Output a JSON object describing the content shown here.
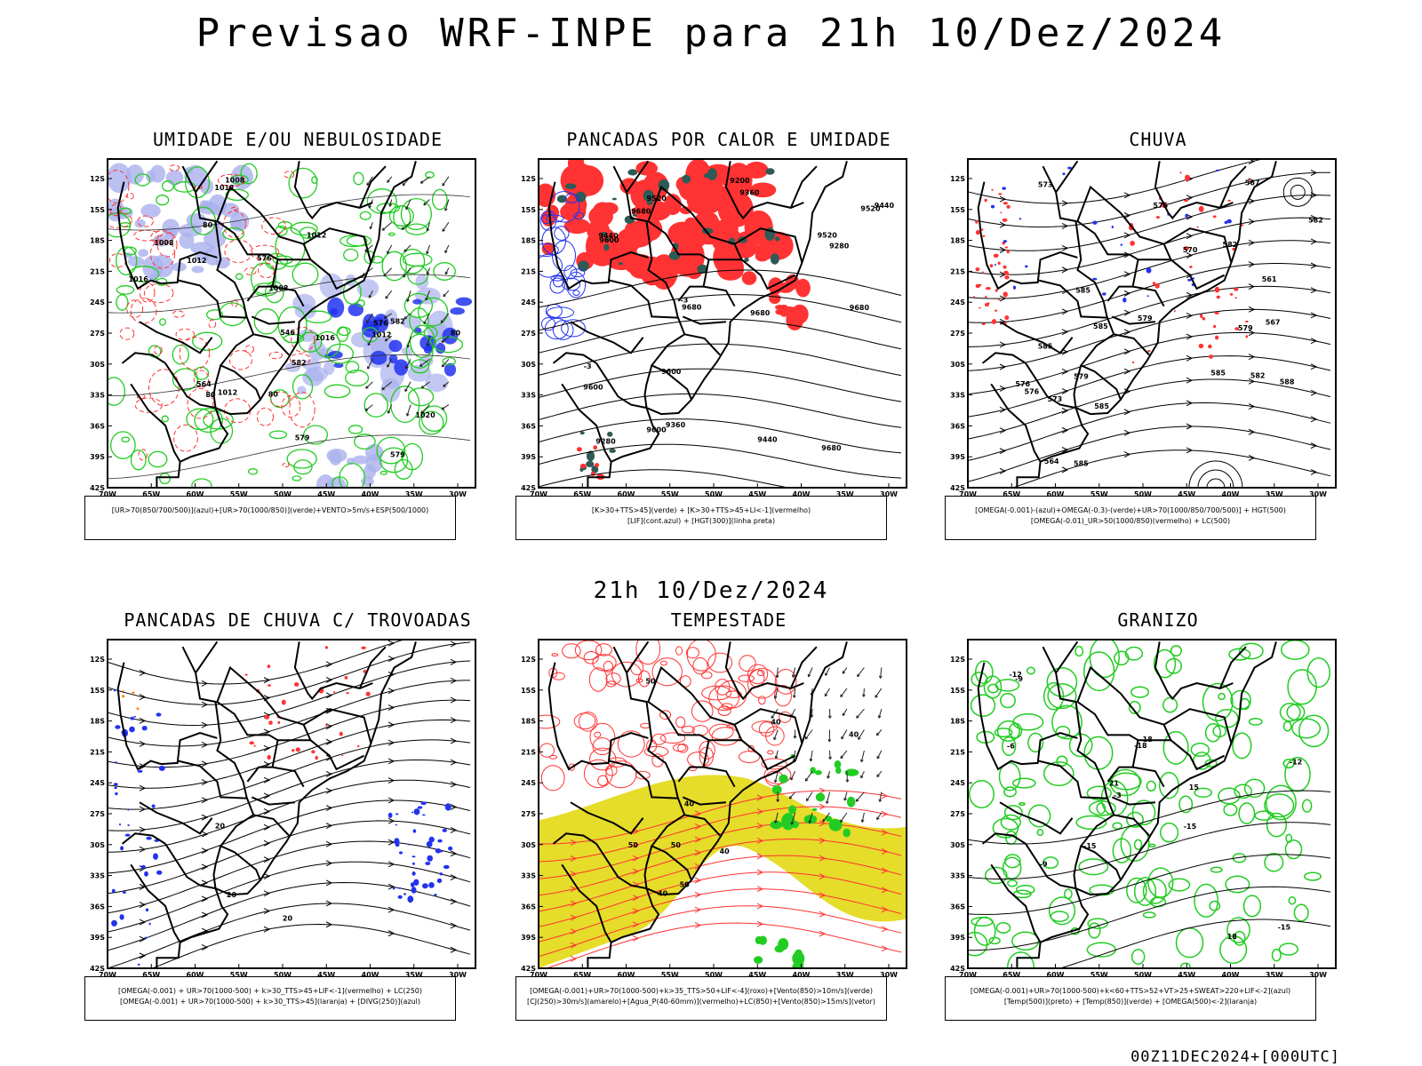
{
  "title": "Previsao WRF-INPE  para 21h 10/Dez/2024",
  "subtitle": "21h 10/Dez/2024",
  "footer": "00Z11DEC2024+[000UTC]",
  "axes": {
    "lat_ticks": [
      "12S",
      "15S",
      "18S",
      "21S",
      "24S",
      "27S",
      "30S",
      "33S",
      "36S",
      "39S",
      "42S"
    ],
    "lon_ticks": [
      "70W",
      "65W",
      "60W",
      "55W",
      "50W",
      "45W",
      "40W",
      "35W",
      "30W"
    ]
  },
  "colors": {
    "red": "#ff3333",
    "green": "#22cc22",
    "blue": "#2233ee",
    "lightblue": "#aab0ee",
    "yellow": "#e6dc2a",
    "darkteal": "#2f5a55",
    "orange": "#ff8800",
    "black": "#000000"
  },
  "panels": [
    {
      "id": "p1",
      "title": "UMIDADE E/OU NEBULOSIDADE",
      "legend": [
        "[UR>70(850/700/500)](azul)+[UR>70(1000/850)](verde)+VENTO>5m/s+ESP(500/1000)"
      ],
      "labels": [
        "1012",
        "1008",
        "1008",
        "1012",
        "1012",
        "1012",
        "1016",
        "1016",
        "1020",
        "1012",
        "1008",
        "576",
        "579",
        "582",
        "582",
        "579",
        "576",
        "546",
        "564",
        "80",
        "80",
        "80",
        "80"
      ],
      "icons": [
        "streamline-arrows",
        "isobar-contours",
        "wind-vectors"
      ]
    },
    {
      "id": "p2",
      "title": "PANCADAS POR CALOR E UMIDADE",
      "legend": [
        "[K>30+TTS>45](verde) + [K>30+TTS>45+LI<-1](vermelho)",
        "[LIF](cont.azul) + [HGT(300)](linha preta)"
      ],
      "labels": [
        "9680",
        "9680",
        "9680",
        "9680",
        "9600",
        "9600",
        "9680",
        "9600",
        "9600",
        "9520",
        "9520",
        "9520",
        "9440",
        "9440",
        "9360",
        "9360",
        "9280",
        "9280",
        "9200",
        "9440",
        "-3",
        "-3"
      ]
    },
    {
      "id": "p3",
      "title": "CHUVA",
      "legend": [
        "[OMEGA(-0.001)-(azul)+OMEGA(-0.3)-(verde)+UR>70(1000/850/700/500)] + HGT(500)",
        "[OMEGA(-0.01)_UR>50(1000/850)(vermelho) + LC(500)"
      ],
      "labels": [
        "585",
        "585",
        "585",
        "585",
        "588",
        "582",
        "585",
        "582",
        "579",
        "576",
        "585",
        "582",
        "579",
        "576",
        "573",
        "570",
        "567",
        "564",
        "561",
        "567",
        "573",
        "576",
        "579"
      ]
    },
    {
      "id": "p4",
      "title": "PANCADAS DE CHUVA C/ TROVOADAS",
      "legend": [
        "[OMEGA(-0.001) + UR>70(1000-500) + k>30_TTS>45+LIF<-1](vermelho) + LC(250)",
        "[OMEGA(-0.001) + UR>70(1000-500) + k>30_TTS>45](laranja) + [DIVG(250)](azul)"
      ],
      "labels": [
        "20",
        "20",
        "20"
      ]
    },
    {
      "id": "p5",
      "title": "TEMPESTADE",
      "legend": [
        "[OMEGA(-0.001)+UR>70(1000-500)+k>35_TTS>50+LIF<-4](roxo)+[Vento(850)>10m/s](verde)",
        "[CJ(250)>30m/s](amarelo)+[Agua_P(40-60mm)](vermelho)+LC(850)+[Vento(850)>15m/s](vetor)"
      ],
      "labels": [
        "50",
        "50",
        "50",
        "40",
        "40",
        "40",
        "40",
        "50",
        "40"
      ]
    },
    {
      "id": "p6",
      "title": "GRANIZO",
      "legend": [
        "[OMEGA(-0.001)+UR>70(1000-500)+k<60+TTS>52+VT>25+SWEAT>220+LIF<-2](azul)",
        "[Temp(500)](preto) + [Temp(850)](verde) + [OMEGA(500)<-2](laranja)"
      ],
      "labels": [
        "-3",
        "-6",
        "-9",
        "-12",
        "-15",
        "-18",
        "-15",
        "-12",
        "-9",
        "15",
        "18",
        "21",
        "-18",
        "-15"
      ]
    }
  ]
}
